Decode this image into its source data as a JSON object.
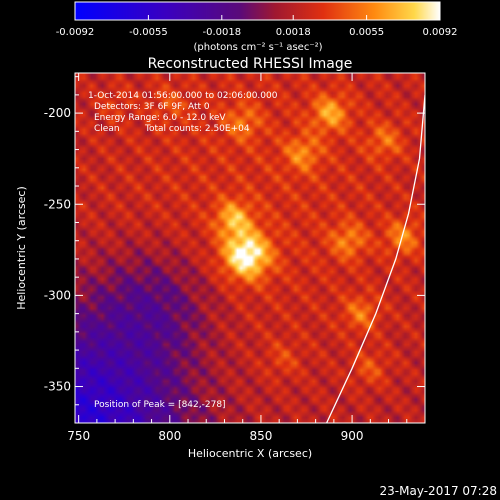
{
  "chart_data": {
    "type": "heatmap",
    "title": "Reconstructed RHESSI Image",
    "xlabel": "Heliocentric X (arcsec)",
    "ylabel": "Heliocentric Y (arcsec)",
    "xlim": [
      748,
      940
    ],
    "ylim": [
      -370,
      -178
    ],
    "x_ticks": [
      "750",
      "800",
      "850",
      "900"
    ],
    "y_ticks": [
      "-200",
      "-250",
      "-300",
      "-350"
    ],
    "x_tick_values": [
      750,
      800,
      850,
      900
    ],
    "y_tick_values": [
      -200,
      -250,
      -300,
      -350
    ],
    "colorbar": {
      "min": -0.0092,
      "max": 0.0092,
      "tick_values": [
        -0.0092,
        -0.0055,
        -0.0018,
        0.0018,
        0.0055,
        0.0092
      ],
      "tick_labels": [
        "-0.0092",
        "-0.0055",
        "-0.0018",
        "0.0018",
        "0.0055",
        "0.0092"
      ],
      "unit_label": "(photons cm⁻² s⁻¹ asec⁻²)"
    },
    "annotations": {
      "time": "1-Oct-2014 01:56:00.000 to 02:06:00.000",
      "detectors": "Detectors: 3F 6F 9F, Att 0",
      "energy": "Energy Range: 6.0 - 12.0 keV",
      "clean": "Clean",
      "counts": "Total counts: 2.50E+04",
      "peak": "Position of Peak = [842,-278]"
    },
    "peak": [
      842,
      -278
    ],
    "sources": [
      {
        "x": 842,
        "y": -278,
        "intensity": 0.0092
      },
      {
        "x": 835,
        "y": -258,
        "intensity": 0.0062
      },
      {
        "x": 888,
        "y": -200,
        "intensity": 0.006
      },
      {
        "x": 873,
        "y": -222,
        "intensity": 0.005
      },
      {
        "x": 898,
        "y": -270,
        "intensity": 0.005
      },
      {
        "x": 928,
        "y": -268,
        "intensity": 0.0052
      },
      {
        "x": 905,
        "y": -310,
        "intensity": 0.0048
      },
      {
        "x": 840,
        "y": -205,
        "intensity": 0.0045
      },
      {
        "x": 918,
        "y": -215,
        "intensity": 0.0045
      },
      {
        "x": 862,
        "y": -335,
        "intensity": 0.0035
      },
      {
        "x": 910,
        "y": -340,
        "intensity": 0.004
      },
      {
        "x": 800,
        "y": -195,
        "intensity": 0.0035
      },
      {
        "x": 770,
        "y": -195,
        "intensity": 0.003
      }
    ],
    "limb_curve": [
      [
        886,
        -370
      ],
      [
        900,
        -340
      ],
      [
        913,
        -310
      ],
      [
        924,
        -280
      ],
      [
        931,
        -255
      ],
      [
        937,
        -225
      ],
      [
        940,
        -190
      ]
    ]
  },
  "footer": {
    "timestamp": "23-May-2017 07:28"
  },
  "colors": {
    "background": "#000000",
    "limb": "#ffffff",
    "text": "#ffffff"
  }
}
